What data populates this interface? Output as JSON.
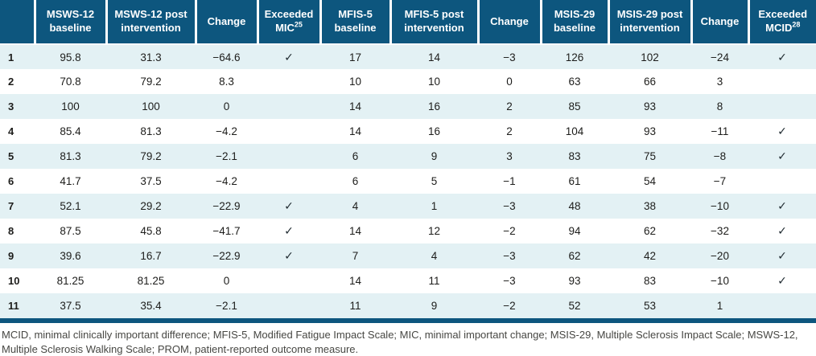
{
  "colors": {
    "header_bg": "#0D567E",
    "header_text": "#FFFFFF",
    "row_alt_bg": "#E3F1F4",
    "body_text": "#1D1D1B",
    "footnote_text": "#474743"
  },
  "icons": {
    "checkmark": "✓"
  },
  "table": {
    "columns": [
      {
        "key": "patient-number",
        "label": "",
        "sup": ""
      },
      {
        "key": "msws12-baseline",
        "label": "MSWS-12\nbaseline",
        "sup": ""
      },
      {
        "key": "msws12-post",
        "label": "MSWS-12 post\nintervention",
        "sup": ""
      },
      {
        "key": "msws12-change",
        "label": "Change",
        "sup": ""
      },
      {
        "key": "exceeded-mic",
        "label": "Exceeded\nMIC",
        "sup": "25"
      },
      {
        "key": "mfis5-baseline",
        "label": "MFIS-5\nbaseline",
        "sup": ""
      },
      {
        "key": "mfis5-post",
        "label": "MFIS-5 post\nintervention",
        "sup": ""
      },
      {
        "key": "mfis5-change",
        "label": "Change",
        "sup": ""
      },
      {
        "key": "msis29-baseline",
        "label": "MSIS-29\nbaseline",
        "sup": ""
      },
      {
        "key": "msis29-post",
        "label": "MSIS-29 post\nintervention",
        "sup": ""
      },
      {
        "key": "msis29-change",
        "label": "Change",
        "sup": ""
      },
      {
        "key": "exceeded-mcid",
        "label": "Exceeded\nMCID",
        "sup": "28"
      }
    ],
    "rows": [
      [
        "1",
        "95.8",
        "31.3",
        "−64.6",
        "✓",
        "17",
        "14",
        "−3",
        "126",
        "102",
        "−24",
        "✓"
      ],
      [
        "2",
        "70.8",
        "79.2",
        "8.3",
        "",
        "10",
        "10",
        "0",
        "63",
        "66",
        "3",
        ""
      ],
      [
        "3",
        "100",
        "100",
        "0",
        "",
        "14",
        "16",
        "2",
        "85",
        "93",
        "8",
        ""
      ],
      [
        "4",
        "85.4",
        "81.3",
        "−4.2",
        "",
        "14",
        "16",
        "2",
        "104",
        "93",
        "−11",
        "✓"
      ],
      [
        "5",
        "81.3",
        "79.2",
        "−2.1",
        "",
        "6",
        "9",
        "3",
        "83",
        "75",
        "−8",
        "✓"
      ],
      [
        "6",
        "41.7",
        "37.5",
        "−4.2",
        "",
        "6",
        "5",
        "−1",
        "61",
        "54",
        "−7",
        ""
      ],
      [
        "7",
        "52.1",
        "29.2",
        "−22.9",
        "✓",
        "4",
        "1",
        "−3",
        "48",
        "38",
        "−10",
        "✓"
      ],
      [
        "8",
        "87.5",
        "45.8",
        "−41.7",
        "✓",
        "14",
        "12",
        "−2",
        "94",
        "62",
        "−32",
        "✓"
      ],
      [
        "9",
        "39.6",
        "16.7",
        "−22.9",
        "✓",
        "7",
        "4",
        "−3",
        "62",
        "42",
        "−20",
        "✓"
      ],
      [
        "10",
        "81.25",
        "81.25",
        "0",
        "",
        "14",
        "11",
        "−3",
        "93",
        "83",
        "−10",
        "✓"
      ],
      [
        "11",
        "37.5",
        "35.4",
        "−2.1",
        "",
        "11",
        "9",
        "−2",
        "52",
        "53",
        "1",
        ""
      ]
    ]
  },
  "footnote": "MCID, minimal clinically important difference; MFIS-5, Modified Fatigue Impact Scale; MIC, minimal important change; MSIS-29, Multiple Sclerosis Impact Scale; MSWS-12, Multiple Sclerosis Walking Scale; PROM, patient-reported outcome measure."
}
